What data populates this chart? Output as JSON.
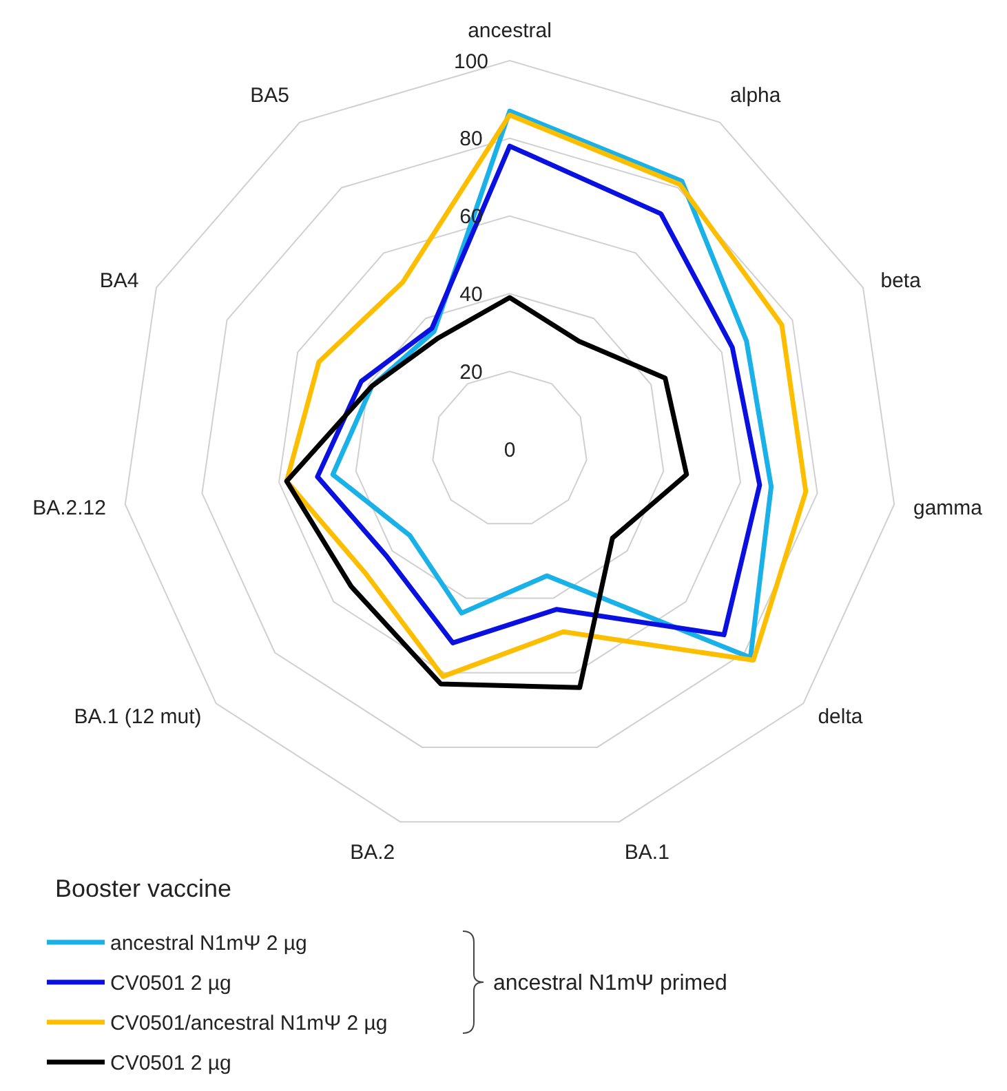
{
  "chart_data": {
    "type": "radar",
    "categories": [
      "ancestral",
      "alpha",
      "beta",
      "gamma",
      "delta",
      "BA.1",
      "BA.2",
      "BA.1 (12 mut)",
      "BA.2.12",
      "BA4",
      "BA5"
    ],
    "ylim": [
      0,
      100
    ],
    "yticks": [
      0,
      20,
      40,
      60,
      80,
      100
    ],
    "grid": true,
    "legend": "bottom",
    "legend_title": "Booster vaccine",
    "marker": "none",
    "line_style": "solid",
    "series": [
      {
        "name": "ancestral N1mΨ 2 µg",
        "color": "#1ab0e8",
        "values": [
          87,
          82,
          67,
          68,
          82,
          34,
          44,
          34,
          46,
          39,
          36
        ]
      },
      {
        "name": "CV0501 2 µg",
        "color": "#0a10e0",
        "values": [
          78,
          72,
          63,
          65,
          73,
          43,
          52,
          42,
          50,
          42,
          37
        ]
      },
      {
        "name": "CV0501/ancestral N1mΨ 2 µg",
        "color": "#fdbe00",
        "values": [
          86,
          81,
          77,
          77,
          83,
          49,
          61,
          49,
          58,
          54,
          51
        ]
      },
      {
        "name": "CV0501 2 µg",
        "color": "#000000",
        "values": [
          39,
          33,
          44,
          46,
          35,
          64,
          63,
          54,
          58,
          39,
          34
        ]
      }
    ],
    "annotations": [
      "ancestral N1mΨ primed"
    ]
  }
}
